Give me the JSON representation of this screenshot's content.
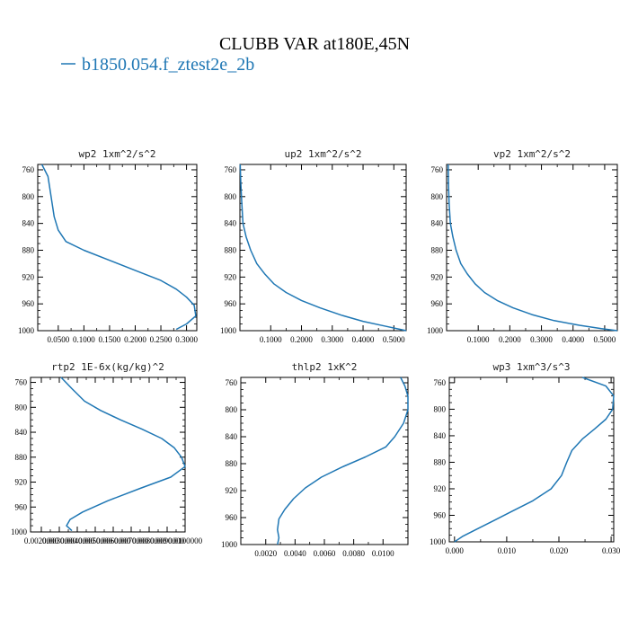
{
  "figure": {
    "title": "CLUBB VAR at180E,45N",
    "legend": {
      "label": "b1850.054.f_ztest2e_2b",
      "color": "#1f77b4"
    }
  },
  "chart_data": [
    {
      "type": "line",
      "title": "wp2  1xm^2/s^2",
      "xlim": [
        0.01,
        0.32
      ],
      "ylim": [
        1000,
        752
      ],
      "y_inverted": true,
      "xticks": [
        0.05,
        0.1,
        0.15,
        0.2,
        0.25,
        0.3
      ],
      "xticklabels": [
        "0.0500",
        "0.1000",
        "0.1500",
        "0.2000",
        "0.2500",
        "0.3000"
      ],
      "yticks": [
        760,
        800,
        840,
        880,
        920,
        960,
        1000
      ],
      "yticklabels": [
        "760",
        "800",
        "840",
        "880",
        "920",
        "960",
        "1000"
      ],
      "series": [
        {
          "color": "#1f77b4",
          "x": [
            0.018,
            0.03,
            0.034,
            0.038,
            0.042,
            0.05,
            0.065,
            0.1,
            0.15,
            0.2,
            0.25,
            0.28,
            0.3,
            0.315,
            0.318,
            0.3,
            0.28
          ],
          "y": [
            752,
            770,
            790,
            810,
            830,
            850,
            867,
            880,
            895,
            910,
            925,
            938,
            950,
            962,
            978,
            990,
            998
          ]
        }
      ]
    },
    {
      "type": "line",
      "title": "up2  1xm^2/s^2",
      "xlim": [
        0.0,
        0.54
      ],
      "ylim": [
        1000,
        752
      ],
      "y_inverted": true,
      "xticks": [
        0.1,
        0.2,
        0.3,
        0.4,
        0.5
      ],
      "xticklabels": [
        "0.1000",
        "0.2000",
        "0.3000",
        "0.4000",
        "0.5000"
      ],
      "yticks": [
        760,
        800,
        840,
        880,
        920,
        960,
        1000
      ],
      "yticklabels": [
        "760",
        "800",
        "840",
        "880",
        "920",
        "960",
        "1000"
      ],
      "series": [
        {
          "color": "#1f77b4",
          "x": [
            0.001,
            0.003,
            0.006,
            0.01,
            0.02,
            0.035,
            0.055,
            0.08,
            0.11,
            0.15,
            0.2,
            0.26,
            0.33,
            0.4,
            0.47,
            0.52,
            0.54
          ],
          "y": [
            752,
            780,
            810,
            840,
            860,
            880,
            900,
            915,
            930,
            943,
            955,
            966,
            977,
            986,
            993,
            998,
            1000
          ]
        }
      ]
    },
    {
      "type": "line",
      "title": "vp2  1xm^2/s^2",
      "xlim": [
        0.0,
        0.54
      ],
      "ylim": [
        1000,
        752
      ],
      "y_inverted": true,
      "xticks": [
        0.1,
        0.2,
        0.3,
        0.4,
        0.5
      ],
      "xticklabels": [
        "0.1000",
        "0.2000",
        "0.3000",
        "0.4000",
        "0.5000"
      ],
      "yticks": [
        760,
        800,
        840,
        880,
        920,
        960,
        1000
      ],
      "yticklabels": [
        "760",
        "800",
        "840",
        "880",
        "920",
        "960",
        "1000"
      ],
      "series": [
        {
          "color": "#1f77b4",
          "x": [
            0.005,
            0.006,
            0.008,
            0.012,
            0.02,
            0.03,
            0.045,
            0.065,
            0.09,
            0.12,
            0.16,
            0.21,
            0.27,
            0.34,
            0.42,
            0.49,
            0.54
          ],
          "y": [
            752,
            780,
            810,
            840,
            860,
            880,
            900,
            915,
            930,
            943,
            955,
            966,
            976,
            985,
            992,
            997,
            1000
          ]
        }
      ]
    },
    {
      "type": "line",
      "title": "rtp2  1E-6x(kg/kg)^2",
      "xlim": [
        0.0014,
        0.01
      ],
      "ylim": [
        1000,
        752
      ],
      "y_inverted": true,
      "xticks": [
        0.002,
        0.003,
        0.004,
        0.005,
        0.006,
        0.007,
        0.008,
        0.009,
        0.01
      ],
      "xticklabels": [
        "0.0020000",
        "0.0030000",
        "0.0040000",
        "0.0050000",
        "0.0060000",
        "0.0070000",
        "0.0080000",
        "0.0090000",
        "0.0100000"
      ],
      "yticks": [
        760,
        800,
        840,
        880,
        920,
        960,
        1000
      ],
      "yticklabels": [
        "760",
        "800",
        "840",
        "880",
        "920",
        "960",
        "1000"
      ],
      "series": [
        {
          "color": "#1f77b4",
          "x": [
            0.0031,
            0.0037,
            0.0044,
            0.0053,
            0.0064,
            0.0076,
            0.0087,
            0.0094,
            0.0098,
            0.01,
            0.0092,
            0.0075,
            0.0057,
            0.0043,
            0.0036,
            0.0034,
            0.0037
          ],
          "y": [
            752,
            770,
            790,
            805,
            820,
            835,
            850,
            865,
            880,
            895,
            912,
            930,
            950,
            968,
            980,
            990,
            998
          ]
        }
      ]
    },
    {
      "type": "line",
      "title": "thlp2  1xK^2",
      "xlim": [
        0.0003,
        0.0117
      ],
      "ylim": [
        1000,
        752
      ],
      "y_inverted": true,
      "xticks": [
        0.002,
        0.004,
        0.006,
        0.008,
        0.01
      ],
      "xticklabels": [
        "0.0020",
        "0.0040",
        "0.0060",
        "0.0080",
        "0.0100"
      ],
      "yticks": [
        760,
        800,
        840,
        880,
        920,
        960,
        1000
      ],
      "yticklabels": [
        "760",
        "800",
        "840",
        "880",
        "920",
        "960",
        "1000"
      ],
      "series": [
        {
          "color": "#1f77b4",
          "x": [
            0.0112,
            0.0115,
            0.0117,
            0.0117,
            0.0114,
            0.0108,
            0.0102,
            0.0088,
            0.0072,
            0.0058,
            0.0047,
            0.0039,
            0.0033,
            0.0029,
            0.0028,
            0.0029,
            0.0028
          ],
          "y": [
            752,
            765,
            780,
            800,
            820,
            840,
            855,
            870,
            885,
            900,
            916,
            932,
            948,
            962,
            978,
            990,
            1000
          ]
        }
      ]
    },
    {
      "type": "line",
      "title": "wp3  1xm^3/s^3",
      "xlim": [
        -0.001,
        0.0305
      ],
      "ylim": [
        1000,
        752
      ],
      "y_inverted": true,
      "xticks": [
        0.0,
        0.01,
        0.02,
        0.03
      ],
      "xticklabels": [
        "0.000",
        "0.010",
        "0.020",
        "0.030"
      ],
      "yticks": [
        760,
        800,
        840,
        880,
        920,
        960,
        1000
      ],
      "yticklabels": [
        "760",
        "800",
        "840",
        "880",
        "920",
        "960",
        "1000"
      ],
      "series": [
        {
          "color": "#1f77b4",
          "x": [
            0.0245,
            0.029,
            0.0305,
            0.0303,
            0.029,
            0.0268,
            0.0245,
            0.0225,
            0.0215,
            0.0205,
            0.0185,
            0.015,
            0.011,
            0.0075,
            0.0045,
            0.0015,
            0.0
          ],
          "y": [
            752,
            765,
            780,
            800,
            815,
            830,
            845,
            862,
            880,
            900,
            920,
            938,
            954,
            968,
            980,
            992,
            1000
          ]
        }
      ]
    }
  ]
}
